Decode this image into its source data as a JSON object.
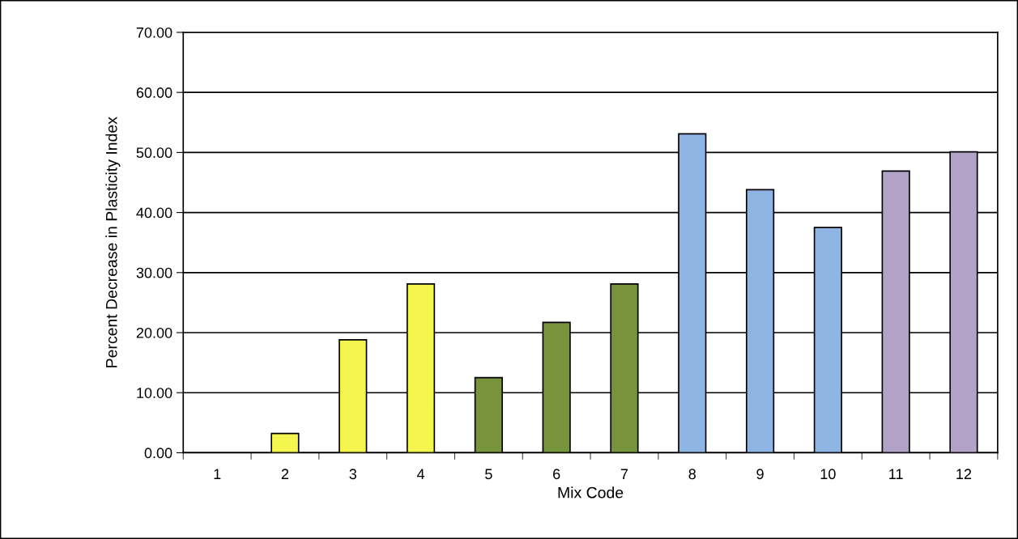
{
  "chart_data": {
    "type": "bar",
    "xlabel": "Mix Code",
    "ylabel": "Percent Decrease in Plasticity Index",
    "categories": [
      "1",
      "2",
      "3",
      "4",
      "5",
      "6",
      "7",
      "8",
      "9",
      "10",
      "11",
      "12"
    ],
    "values": [
      0,
      3.2,
      18.8,
      28.1,
      12.5,
      21.7,
      28.1,
      53.1,
      43.8,
      37.5,
      46.9,
      50.1
    ],
    "colors": [
      "#f5f550",
      "#f5f550",
      "#f5f550",
      "#f5f550",
      "#77933c",
      "#77933c",
      "#77933c",
      "#8eb4e3",
      "#8eb4e3",
      "#8eb4e3",
      "#b3a2c7",
      "#b3a2c7"
    ],
    "ylim": [
      0,
      70
    ],
    "yticks": [
      {
        "value": 0,
        "label": "0.00"
      },
      {
        "value": 10,
        "label": "10.00"
      },
      {
        "value": 20,
        "label": "20.00"
      },
      {
        "value": 30,
        "label": "30.00"
      },
      {
        "value": 40,
        "label": "40.00"
      },
      {
        "value": 50,
        "label": "50.00"
      },
      {
        "value": 60,
        "label": "60.00"
      },
      {
        "value": 70,
        "label": "70.00"
      }
    ],
    "grid": "y"
  }
}
